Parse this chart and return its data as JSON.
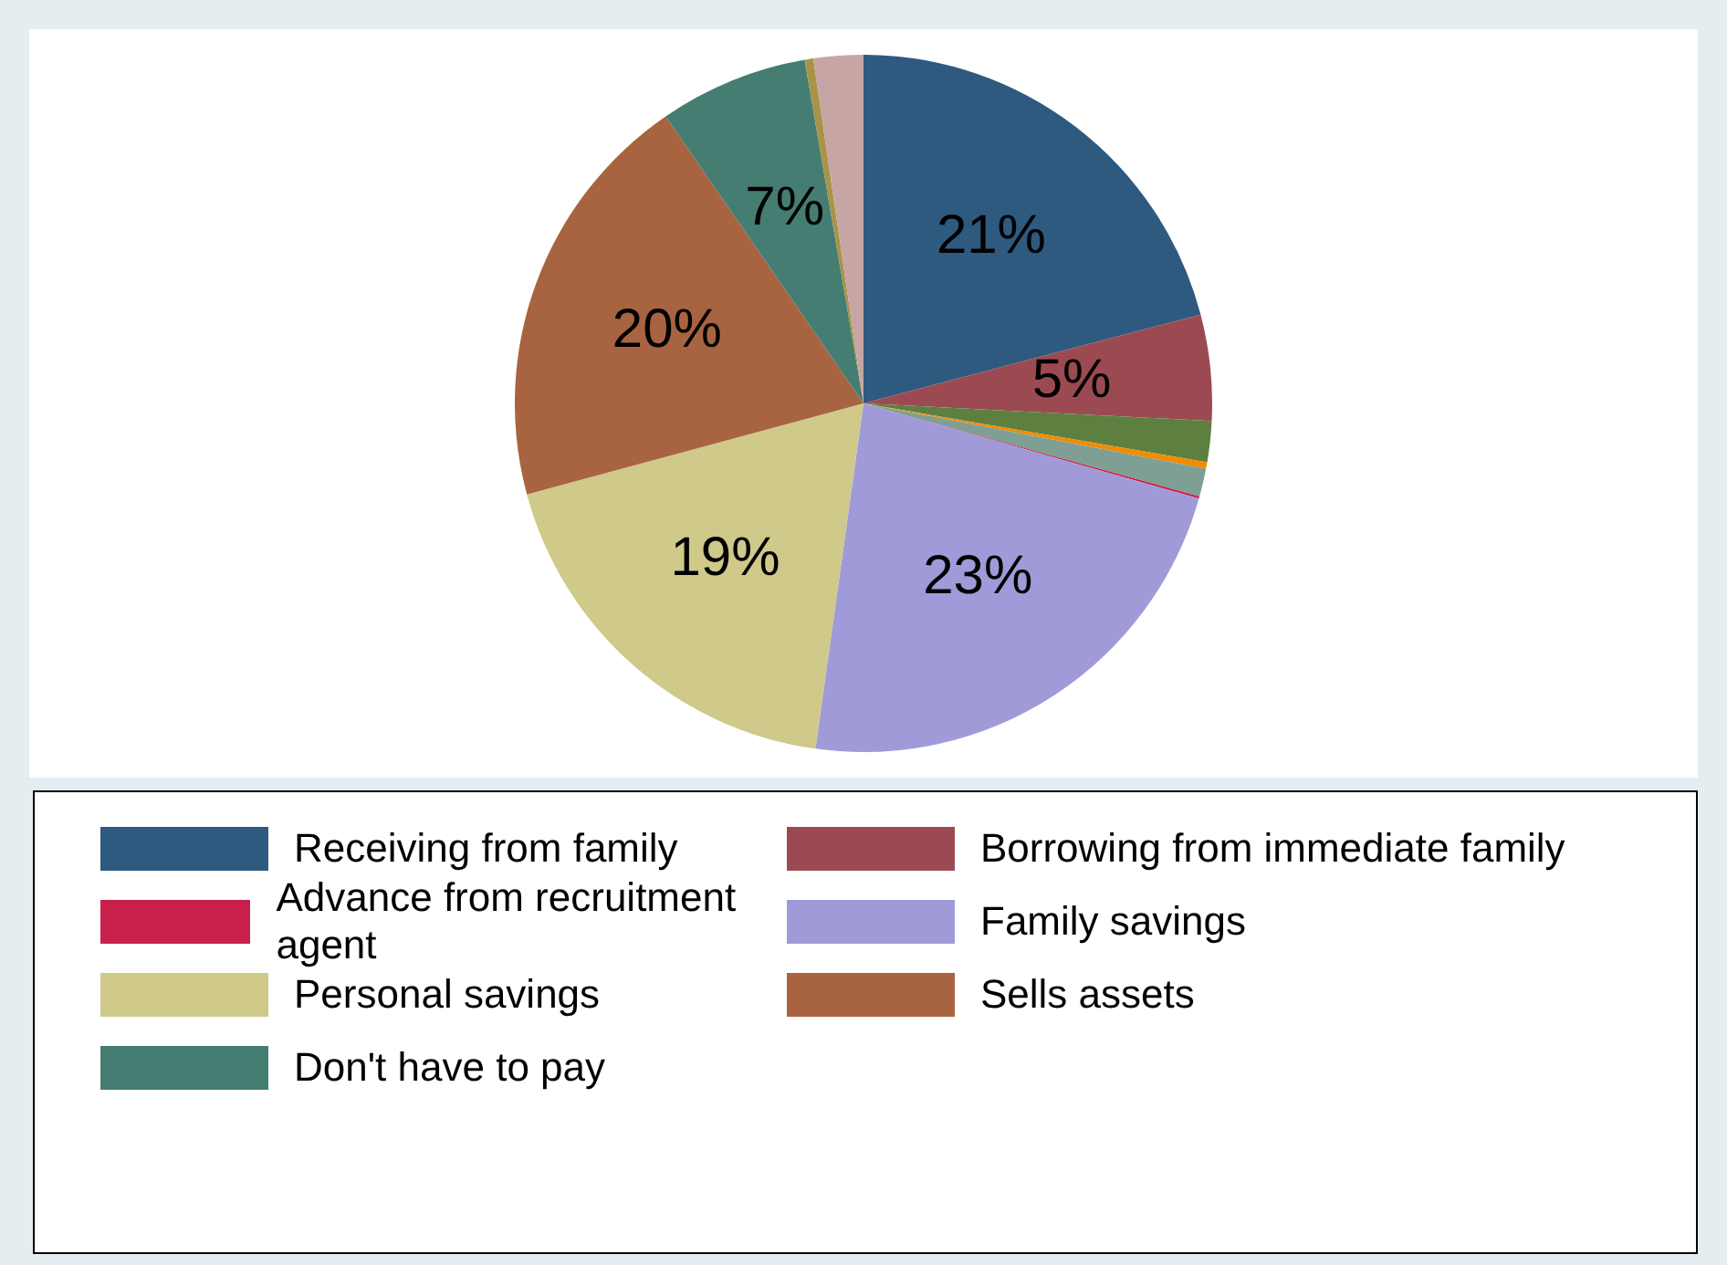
{
  "chart_data": {
    "type": "pie",
    "legend": "bottom",
    "categories": [
      "Receiving from family",
      "Borrowing from immediate family",
      null,
      null,
      null,
      "Advance from recruitment agent",
      "Family savings",
      "Personal savings",
      "Sells assets",
      "Don't have to pay",
      null,
      null
    ],
    "values": [
      20.9,
      4.9,
      1.9,
      0.3,
      1.3,
      0.1,
      22.8,
      18.6,
      19.6,
      6.9,
      0.4,
      2.3
    ],
    "colors": [
      "#2f5a7f",
      "#9c4a52",
      "#5d8040",
      "#f08c00",
      "#7f9f94",
      "#c8204a",
      "#a09bd8",
      "#cfc98a",
      "#a86440",
      "#457d72",
      "#a89448",
      "#c8a5a5"
    ],
    "value_labels": [
      "21%",
      "5%",
      null,
      null,
      null,
      null,
      "23%",
      "19%",
      "20%",
      "7%",
      null,
      null
    ]
  }
}
